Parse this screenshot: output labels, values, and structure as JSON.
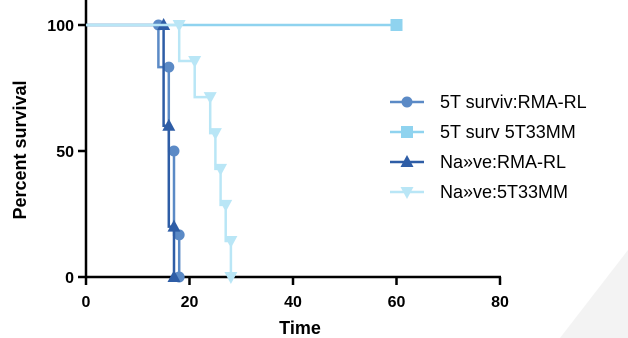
{
  "chart_data": {
    "type": "line",
    "subtype": "kaplan-meier survival",
    "xlabel": "Time",
    "ylabel": "Percent survival",
    "xlim": [
      0,
      80
    ],
    "ylim": [
      0,
      100
    ],
    "xticks": [
      0,
      20,
      40,
      60,
      80
    ],
    "yticks": [
      0,
      50,
      100
    ],
    "grid": false,
    "legend_position": "right",
    "series": [
      {
        "name": "5T surviv:RMA-RL",
        "color": "#5b8ac6",
        "marker": "circle",
        "points": [
          [
            0,
            100
          ],
          [
            14,
            100
          ],
          [
            14,
            83.3
          ],
          [
            16,
            83.3
          ],
          [
            16,
            50
          ],
          [
            17,
            50
          ],
          [
            17,
            16.7
          ],
          [
            18,
            16.7
          ],
          [
            18,
            0
          ]
        ]
      },
      {
        "name": "5T surv 5T33MM",
        "color": "#8fd3ef",
        "marker": "square",
        "points": [
          [
            0,
            100
          ],
          [
            60,
            100
          ]
        ]
      },
      {
        "name": "Na»ve:RMA-RL",
        "color": "#2e5da6",
        "marker": "triangle-up",
        "points": [
          [
            0,
            100
          ],
          [
            15,
            100
          ],
          [
            15,
            60
          ],
          [
            16,
            60
          ],
          [
            16,
            20
          ],
          [
            17,
            20
          ],
          [
            17,
            0
          ]
        ]
      },
      {
        "name": "Na»ve:5T33MM",
        "color": "#b9e6f6",
        "marker": "triangle-down",
        "points": [
          [
            0,
            100
          ],
          [
            18,
            100
          ],
          [
            18,
            85.7
          ],
          [
            21,
            85.7
          ],
          [
            21,
            71.4
          ],
          [
            24,
            71.4
          ],
          [
            24,
            57.1
          ],
          [
            25,
            57.1
          ],
          [
            25,
            42.9
          ],
          [
            26,
            42.9
          ],
          [
            26,
            28.6
          ],
          [
            27,
            28.6
          ],
          [
            27,
            14.3
          ],
          [
            28,
            14.3
          ],
          [
            28,
            0
          ]
        ]
      }
    ]
  }
}
